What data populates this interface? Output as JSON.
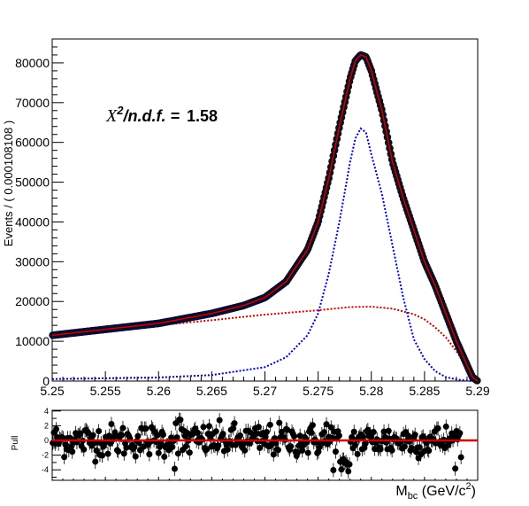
{
  "chart_data": [
    {
      "type": "scatter",
      "panel": "main",
      "ylabel": "Events / ( 0.000108108 )",
      "xlim": [
        5.25,
        5.29
      ],
      "ylim": [
        0,
        86000
      ],
      "x_ticks": [
        "5.25",
        "5.255",
        "5.26",
        "5.265",
        "5.27",
        "5.275",
        "5.28",
        "5.285",
        "5.29"
      ],
      "x_tick_values": [
        5.25,
        5.255,
        5.26,
        5.265,
        5.27,
        5.275,
        5.28,
        5.285,
        5.29
      ],
      "y_ticks": [
        "0",
        "10000",
        "20000",
        "30000",
        "40000",
        "50000",
        "60000",
        "70000",
        "80000"
      ],
      "y_tick_values": [
        0,
        10000,
        20000,
        30000,
        40000,
        50000,
        60000,
        70000,
        80000
      ],
      "annotation": {
        "chi_symbol": "X",
        "chi_exp": "2",
        "chi_text": "/n.d.f. =",
        "chi_value": "1.58"
      },
      "data_knots": {
        "x": [
          5.25,
          5.255,
          5.26,
          5.265,
          5.268,
          5.27,
          5.272,
          5.274,
          5.275,
          5.276,
          5.277,
          5.278,
          5.2785,
          5.279,
          5.2795,
          5.28,
          5.281,
          5.282,
          5.283,
          5.284,
          5.285,
          5.286,
          5.287,
          5.288,
          5.289,
          5.2895,
          5.29
        ],
        "y": [
          11500,
          13000,
          14500,
          17000,
          19000,
          21000,
          25000,
          33000,
          40000,
          51000,
          64000,
          76000,
          80500,
          82000,
          81500,
          78000,
          68000,
          55000,
          46000,
          38000,
          30000,
          24000,
          17000,
          10000,
          4000,
          1000,
          0
        ]
      },
      "series": [
        {
          "name": "signal",
          "color": "#0000cc",
          "style": "dotted",
          "x": [
            5.25,
            5.26,
            5.265,
            5.27,
            5.272,
            5.274,
            5.275,
            5.276,
            5.277,
            5.278,
            5.2785,
            5.279,
            5.2795,
            5.28,
            5.281,
            5.282,
            5.283,
            5.284,
            5.285,
            5.286,
            5.287,
            5.288,
            5.289,
            5.29
          ],
          "y": [
            500,
            900,
            1500,
            3500,
            6000,
            11500,
            17000,
            27000,
            40000,
            55000,
            61000,
            63500,
            62500,
            57000,
            47000,
            34000,
            21000,
            10500,
            5500,
            2500,
            1000,
            400,
            100,
            0
          ]
        },
        {
          "name": "background",
          "color": "#cc0000",
          "style": "dotted",
          "x": [
            5.25,
            5.255,
            5.26,
            5.265,
            5.27,
            5.275,
            5.278,
            5.28,
            5.282,
            5.284,
            5.285,
            5.286,
            5.287,
            5.288,
            5.289,
            5.2895,
            5.29
          ],
          "y": [
            11500,
            12800,
            14000,
            15300,
            16700,
            17800,
            18600,
            18700,
            18200,
            16800,
            15500,
            13500,
            11000,
            7500,
            3500,
            1200,
            0
          ]
        },
        {
          "name": "total",
          "color": "#cc0000",
          "style": "solid",
          "x": [
            5.25,
            5.255,
            5.26,
            5.265,
            5.268,
            5.27,
            5.272,
            5.274,
            5.275,
            5.276,
            5.277,
            5.278,
            5.2785,
            5.279,
            5.2795,
            5.28,
            5.281,
            5.282,
            5.283,
            5.284,
            5.285,
            5.286,
            5.287,
            5.288,
            5.289,
            5.2895,
            5.29
          ],
          "y": [
            11500,
            13000,
            14500,
            17000,
            19000,
            21000,
            25000,
            33000,
            40000,
            51000,
            64000,
            76000,
            80500,
            82000,
            81500,
            78000,
            68000,
            55000,
            46000,
            38000,
            30000,
            24000,
            17000,
            10000,
            4000,
            1000,
            0
          ]
        }
      ]
    },
    {
      "type": "scatter",
      "panel": "pull",
      "ylabel": "Pull",
      "xlabel_main": "M",
      "xlabel_sub": "bc",
      "xlabel_rest": " (GeV/c",
      "xlabel_sup": "2",
      "xlabel_close": ")",
      "xlim": [
        5.25,
        5.29
      ],
      "ylim": [
        -5,
        5
      ],
      "y_ticks": [
        "4",
        "2",
        "0",
        "-2",
        "-4"
      ],
      "y_tick_values": [
        4,
        2,
        0,
        -2,
        -4
      ],
      "zero_line_color": "#cc0000",
      "pull_regions": [
        {
          "from": 5.25,
          "to": 5.2615,
          "scale": 1.0
        },
        {
          "from": 5.2615,
          "to": 5.2625,
          "scale": 1.7
        },
        {
          "from": 5.2625,
          "to": 5.2755,
          "scale": 1.0
        },
        {
          "from": 5.2755,
          "to": 5.2765,
          "scale": 1.6
        },
        {
          "from": 5.2765,
          "to": 5.277,
          "scale": 1.0
        },
        {
          "from": 5.277,
          "to": 5.278,
          "scale": -3.5
        },
        {
          "from": 5.278,
          "to": 5.29,
          "scale": 1.0
        }
      ]
    }
  ]
}
